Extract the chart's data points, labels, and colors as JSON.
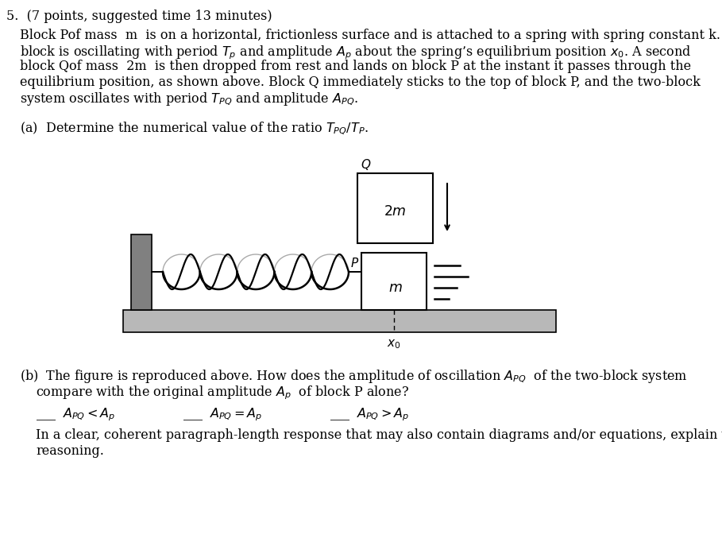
{
  "background_color": "#ffffff",
  "fig_width": 9.09,
  "fig_height": 6.92,
  "dpi": 100,
  "lm": 25,
  "fs_header": 11.5,
  "fs_body": 11.5,
  "header": "5.  (7 points, suggested time 13 minutes)",
  "body_line1": "Block Pof mass  m  is on a horizontal, frictionless surface and is attached to a spring with spring constant k. The",
  "body_line2": "block is oscillating with period $T_p$ and amplitude $A_p$ about the spring’s equilibrium position $x_0$. A second",
  "body_line3": "block Qof mass  2m  is then dropped from rest and lands on block P at the instant it passes through the",
  "body_line4": "equilibrium position, as shown above. Block Q immediately sticks to the top of block P, and the two-block",
  "body_line5": "system oscillates with period $T_{PQ}$ and amplitude $A_{PQ}$.",
  "part_a": "(a)  Determine the numerical value of the ratio $T_{PQ}/T_P$.",
  "part_b1": "(b)  The figure is reproduced above. How does the amplitude of oscillation $A_{PQ}$  of the two-block system",
  "part_b2": "compare with the original amplitude $A_p$  of block P alone?",
  "part_b_choices_1": "___  $A_{PQ} < A_p$",
  "part_b_choices_2": "___  $A_{PQ} = A_p$",
  "part_b_choices_3": "___  $A_{PQ} > A_p$",
  "part_b_final1": "In a clear, coherent paragraph-length response that may also contain diagrams and/or equations, explain your",
  "part_b_final2": "reasoning.",
  "floor_color": "#b8b8b8",
  "wall_color": "#808080",
  "block_color": "#ffffff",
  "block_edge": "#000000"
}
